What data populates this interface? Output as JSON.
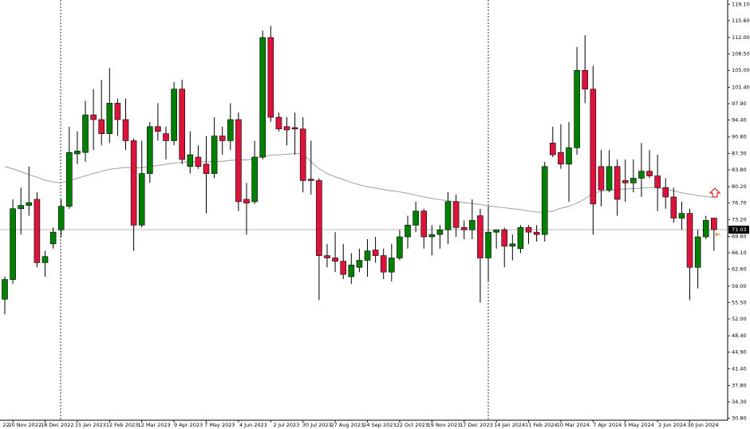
{
  "chart_data": {
    "type": "candlestick",
    "up_color": "#008000",
    "down_color": "#dc143c",
    "ma_color": "#a0a0a0",
    "ylim": [
      30.4,
      120.0
    ],
    "xlim": [
      -0.594,
      89.7
    ],
    "yticks": [
      {
        "value": 119.1,
        "label": "119.10"
      },
      {
        "value": 115.6,
        "label": "115.60"
      },
      {
        "value": 112.0,
        "label": "112.00"
      },
      {
        "value": 108.5,
        "label": "108.50"
      },
      {
        "value": 105.0,
        "label": "105.00"
      },
      {
        "value": 101.4,
        "label": "101.40"
      },
      {
        "value": 97.9,
        "label": "97.90"
      },
      {
        "value": 94.4,
        "label": "94.40"
      },
      {
        "value": 90.8,
        "label": "90.80"
      },
      {
        "value": 87.3,
        "label": "87.30"
      },
      {
        "value": 83.8,
        "label": "83.80"
      },
      {
        "value": 80.2,
        "label": "80.20"
      },
      {
        "value": 76.7,
        "label": "76.70"
      },
      {
        "value": 73.2,
        "label": "73.20"
      },
      {
        "value": 69.6,
        "label": "69.60"
      },
      {
        "value": 66.1,
        "label": "66.10"
      },
      {
        "value": 62.6,
        "label": "62.60"
      },
      {
        "value": 59.0,
        "label": "59.00"
      },
      {
        "value": 55.5,
        "label": "55.50"
      },
      {
        "value": 52.0,
        "label": "52.00"
      },
      {
        "value": 48.4,
        "label": "48.40"
      },
      {
        "value": 44.9,
        "label": "44.90"
      },
      {
        "value": 41.4,
        "label": "41.40"
      },
      {
        "value": 37.8,
        "label": "37.80"
      },
      {
        "value": 34.3,
        "label": "34.30"
      },
      {
        "value": 30.8,
        "label": "30.80"
      }
    ],
    "xticks": [
      {
        "value": -3,
        "label": "22"
      },
      {
        "value": 1,
        "label": "20 Nov 2022"
      },
      {
        "value": 5,
        "label": "18 Dec 2022"
      },
      {
        "value": 9,
        "label": "15 Jan 2023"
      },
      {
        "value": 13,
        "label": "12 Feb 2023"
      },
      {
        "value": 17,
        "label": "12 Mar 2023"
      },
      {
        "value": 21,
        "label": "9 Apr 2023"
      },
      {
        "value": 25,
        "label": "7 May 2023"
      },
      {
        "value": 29,
        "label": "4 Jun 2023"
      },
      {
        "value": 33,
        "label": "2 Jul 2023"
      },
      {
        "value": 37,
        "label": "30 Jul 2023"
      },
      {
        "value": 41,
        "label": "27 Aug 2023"
      },
      {
        "value": 45,
        "label": "24 Sep 2023"
      },
      {
        "value": 49,
        "label": "22 Oct 2023"
      },
      {
        "value": 53,
        "label": "19 Nov 2023"
      },
      {
        "value": 57,
        "label": "17 Dec 2023"
      },
      {
        "value": 61,
        "label": "14 Jan 2024"
      },
      {
        "value": 65,
        "label": "11 Feb 2024"
      },
      {
        "value": 69,
        "label": "10 Mar 2024"
      },
      {
        "value": 73,
        "label": "7 Apr 2024"
      },
      {
        "value": 77,
        "label": "5 May 2024"
      },
      {
        "value": 81,
        "label": "2 Jun 2024"
      },
      {
        "value": 85,
        "label": "30 Jun 2024"
      }
    ],
    "open": [
      56.2,
      60.4,
      75.5,
      76.2,
      77.5,
      64.0,
      68.0,
      71.0,
      76.0,
      87.2,
      87.5,
      95.5,
      94.5,
      91.5,
      98.0,
      94.5,
      90.0,
      72.0,
      83.0,
      93.0,
      91.5,
      90.0,
      101.0,
      84.5,
      86.5,
      85.0,
      83.0,
      91.0,
      90.0,
      94.5,
      77.5,
      77.0,
      86.5,
      112.0,
      95.0,
      93.0,
      92.8,
      92.5,
      81.8,
      81.5,
      65.5,
      65.0,
      64.3,
      61.0,
      63.0,
      64.5,
      66.7,
      65.5,
      62.0,
      65.0,
      69.5,
      72.0,
      75.0,
      69.5,
      70.0,
      71.0,
      77.0,
      71.5,
      71.0,
      74.0,
      65.0,
      70.5,
      71.0,
      67.5,
      67.0,
      71.5,
      70.5,
      70.0,
      89.5,
      87.5,
      85.0,
      88.5,
      105.0,
      101.0,
      84.5,
      79.5,
      84.5,
      81.5,
      81.0,
      82.0,
      83.5,
      82.5,
      80.0,
      78.0,
      73.5,
      74.5,
      63.0,
      69.5,
      73.5
    ],
    "high": [
      61,
      77.5,
      80,
      84.5,
      79,
      66.5,
      71.5,
      77.5,
      93,
      92,
      98.5,
      101,
      103,
      105.5,
      99,
      99,
      90.5,
      90,
      94,
      98,
      93,
      102.5,
      103,
      92,
      89,
      91,
      95,
      93,
      98,
      96,
      81,
      90,
      113.5,
      114.5,
      96,
      95,
      96,
      95,
      90,
      82,
      68,
      70.5,
      68,
      66,
      67,
      69,
      69.5,
      67,
      68,
      71,
      74,
      77,
      75.5,
      72,
      72,
      79,
      78.5,
      73,
      77.5,
      75.5,
      76,
      71,
      71.5,
      70,
      72,
      72,
      72,
      85.5,
      93,
      93.5,
      94,
      110,
      112.5,
      106,
      88,
      88,
      86,
      86,
      86,
      89.5,
      88,
      87,
      82,
      80,
      77,
      75.5,
      71,
      74,
      73.5
    ],
    "low": [
      53,
      59.5,
      70,
      74,
      63,
      61,
      67,
      69.5,
      75.5,
      85,
      85.5,
      88,
      89,
      89.5,
      91,
      88,
      66.5,
      71.5,
      81,
      90,
      86,
      89,
      85,
      83,
      84,
      74.5,
      82,
      87,
      88,
      75,
      70,
      76.5,
      86,
      94,
      92,
      89,
      87,
      79,
      78.5,
      56,
      63,
      62,
      60.5,
      59.5,
      62,
      61,
      64,
      60.5,
      60,
      64.5,
      67,
      70.5,
      67,
      65.5,
      67,
      68,
      69.5,
      69,
      69,
      55.5,
      60,
      67,
      63,
      64.5,
      66,
      68,
      68.5,
      68.5,
      86.5,
      84,
      77,
      87,
      98,
      70,
      76,
      79,
      74,
      77,
      79,
      78,
      82,
      75,
      75.5,
      72.5,
      71,
      56,
      58.5,
      69,
      66.5
    ],
    "close": [
      60.4,
      75.5,
      76.2,
      76.8,
      64.0,
      65.3,
      70.5,
      76.0,
      87.5,
      87.8,
      95.5,
      94.5,
      91.5,
      98.0,
      94.5,
      90.0,
      72.0,
      83.0,
      93.0,
      92.0,
      90.0,
      101.0,
      86.0,
      87.0,
      84.5,
      83.0,
      91.0,
      90.0,
      94.5,
      77.0,
      76.7,
      86.5,
      112.0,
      95.0,
      92.5,
      92.3,
      92.5,
      81.5,
      81.5,
      65.5,
      65.0,
      64.3,
      61.5,
      63.5,
      64.5,
      66.5,
      65.5,
      62.0,
      65.0,
      69.5,
      72.0,
      75.0,
      69.5,
      70.0,
      71.0,
      77.0,
      71.5,
      71.0,
      73.0,
      65.0,
      70.5,
      71.0,
      67.5,
      68.0,
      71.5,
      70.5,
      70.0,
      84.5,
      87.0,
      85.0,
      88.5,
      105.0,
      101.0,
      76.5,
      79.5,
      84.5,
      77.5,
      81.0,
      82.0,
      83.5,
      82.5,
      80.0,
      78.0,
      73.5,
      74.5,
      63.0,
      69.5,
      73.0,
      71.03
    ],
    "ma": [
      84.5,
      84.0,
      83.4,
      82.8,
      82.2,
      81.6,
      81.2,
      81.0,
      81.5,
      82.0,
      82.5,
      83.0,
      83.5,
      83.9,
      84.1,
      84.3,
      84.2,
      84.3,
      84.5,
      84.7,
      85.0,
      85.2,
      85.4,
      85.5,
      85.5,
      85.5,
      85.6,
      85.6,
      85.8,
      85.9,
      85.9,
      86.1,
      86.6,
      86.9,
      87.0,
      87.1,
      87.3,
      87.2,
      85.5,
      84.0,
      83.0,
      82.3,
      81.7,
      81.1,
      80.6,
      80.2,
      79.9,
      79.6,
      79.3,
      79.1,
      78.8,
      78.4,
      78.0,
      77.7,
      77.4,
      77.2,
      77.0,
      76.8,
      76.6,
      76.4,
      76.1,
      75.9,
      75.7,
      75.5,
      75.3,
      75.0,
      74.8,
      74.7,
      75.0,
      75.6,
      76.0,
      76.7,
      77.6,
      78.8,
      79.2,
      79.4,
      79.6,
      79.7,
      79.8,
      79.9,
      80.0,
      80.0,
      79.7,
      79.3,
      78.9,
      78.6,
      78.3,
      78.1,
      77.9
    ],
    "last_price": {
      "value": 71.03,
      "label": "71.03"
    }
  }
}
